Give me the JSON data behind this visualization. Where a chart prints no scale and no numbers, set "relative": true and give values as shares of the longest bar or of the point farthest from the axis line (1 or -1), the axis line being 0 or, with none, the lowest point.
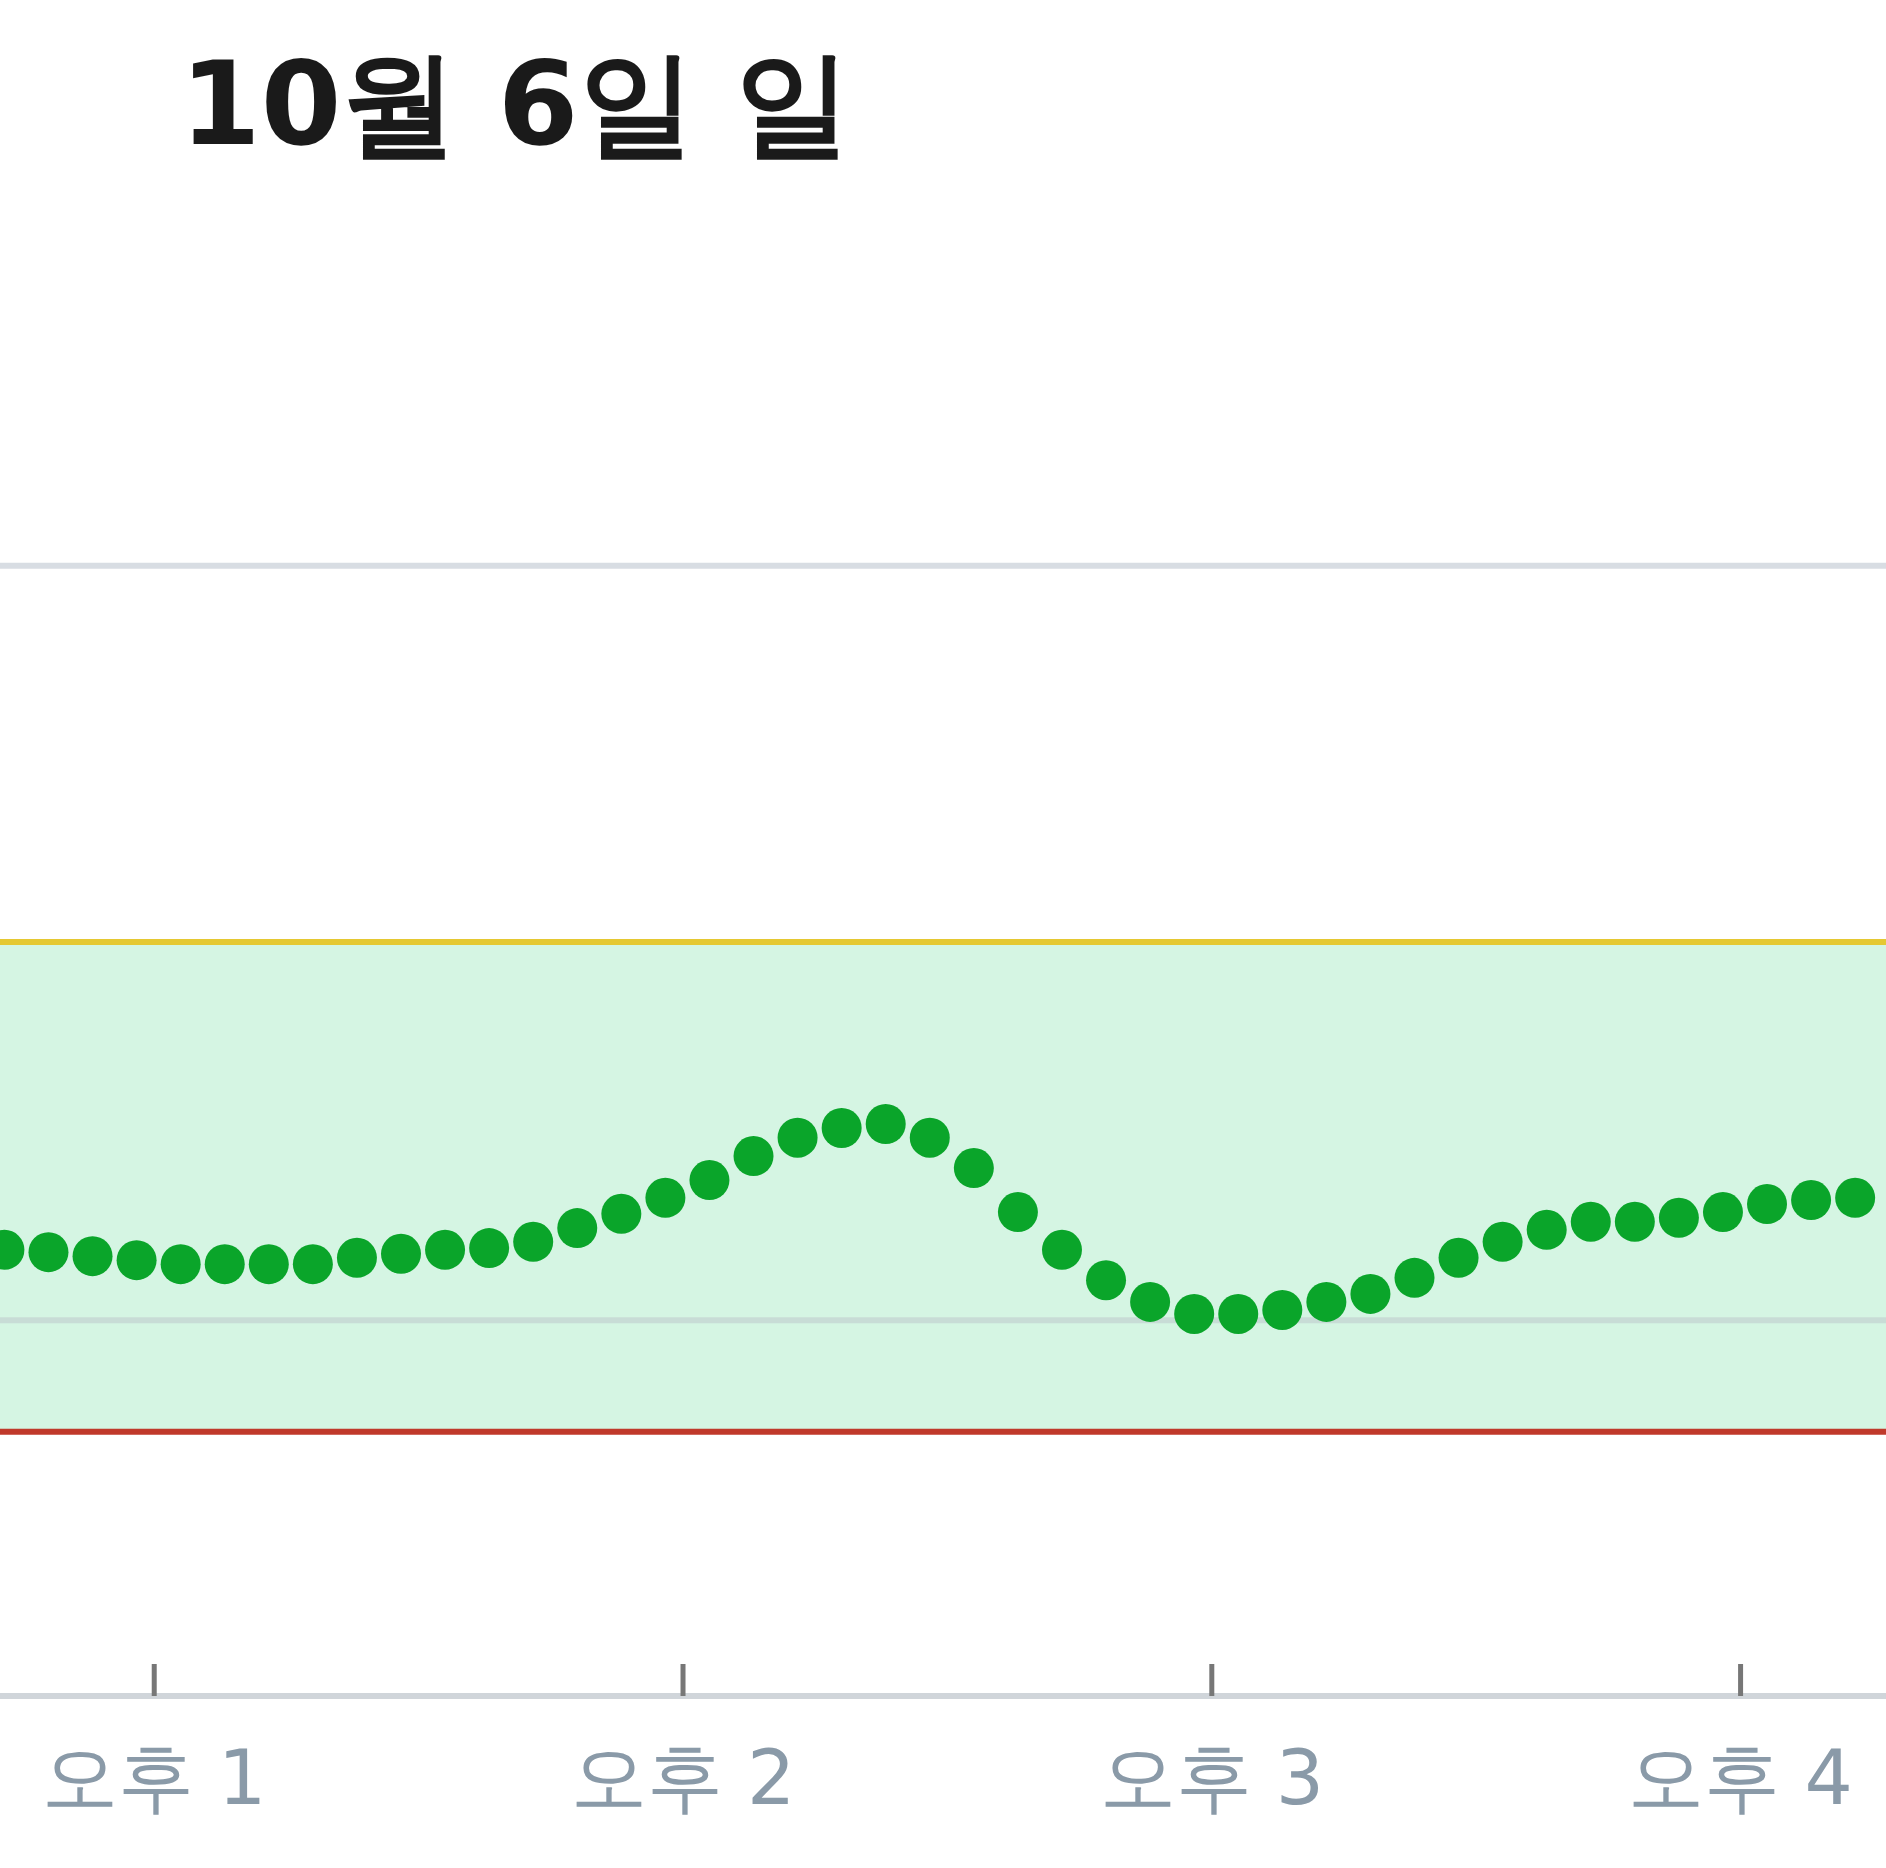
{
  "chart_data": {
    "type": "scatter",
    "title": "10월 6일 일",
    "relative": true,
    "marker": "circle",
    "categories": [
      null,
      null,
      null,
      null,
      null,
      null,
      null,
      null,
      null,
      null,
      null,
      null,
      null,
      null,
      null,
      null,
      null,
      "오후 1",
      null,
      null,
      null,
      null,
      null,
      null,
      null,
      null,
      null,
      null,
      null,
      null,
      null,
      null,
      null,
      null,
      null,
      null,
      null,
      null,
      null,
      null,
      null,
      null,
      null,
      null,
      null,
      null,
      null,
      null,
      null,
      null,
      null,
      null,
      null,
      null,
      null,
      null,
      null,
      null,
      null,
      null,
      null,
      null,
      null,
      null,
      null,
      null,
      null,
      null,
      null,
      null,
      null,
      null,
      null,
      null,
      null,
      null,
      null,
      "오후 2",
      null,
      null,
      null,
      null,
      null,
      null,
      null,
      null,
      null,
      null,
      null,
      null,
      null,
      null,
      null,
      null,
      null,
      null,
      null,
      null,
      null,
      null,
      null,
      null,
      null,
      null,
      null,
      null,
      null,
      null,
      null,
      null,
      null,
      null,
      null,
      null,
      null,
      null,
      null,
      null,
      null,
      null,
      null,
      null,
      null,
      null,
      null,
      null,
      null,
      null,
      null,
      null,
      null,
      null,
      null,
      null,
      null,
      null,
      null,
      "오후 3",
      null,
      null,
      null,
      null,
      null,
      null,
      null,
      null,
      null,
      null,
      null,
      null,
      null,
      null,
      null,
      null,
      null,
      null,
      null,
      null,
      null,
      null,
      null,
      null,
      null,
      null,
      null,
      null,
      null,
      null,
      null,
      null,
      null,
      null,
      null,
      null,
      null,
      null,
      null,
      null,
      null,
      null,
      null,
      null,
      null,
      null,
      null,
      null,
      null,
      null,
      null,
      null,
      null,
      null,
      null,
      null,
      null,
      null,
      null,
      "오후 4",
      null,
      null,
      null,
      null,
      null,
      null,
      null,
      null,
      null,
      null,
      null,
      null,
      null,
      null,
      null,
      null
    ],
    "series": [
      {
        "color": "#0aa52a",
        "values": [
          0.78,
          null,
          null,
          null,
          null,
          0.776,
          null,
          null,
          null,
          null,
          0.769,
          null,
          null,
          null,
          null,
          0.762,
          null,
          null,
          null,
          null,
          0.755,
          null,
          null,
          null,
          null,
          0.755,
          null,
          null,
          null,
          null,
          0.755,
          null,
          null,
          null,
          null,
          0.755,
          null,
          null,
          null,
          null,
          0.766,
          null,
          null,
          null,
          null,
          0.773,
          null,
          null,
          null,
          null,
          0.78,
          null,
          null,
          null,
          null,
          0.783,
          null,
          null,
          null,
          null,
          0.794,
          null,
          null,
          null,
          null,
          0.818,
          null,
          null,
          null,
          null,
          0.843,
          null,
          null,
          null,
          null,
          0.871,
          null,
          null,
          null,
          null,
          0.902,
          null,
          null,
          null,
          null,
          0.944,
          null,
          null,
          null,
          null,
          0.976,
          null,
          null,
          null,
          null,
          0.993,
          null,
          null,
          null,
          null,
          1,
          null,
          null,
          null,
          null,
          0.976,
          null,
          null,
          null,
          null,
          0.923,
          null,
          null,
          null,
          null,
          0.846,
          null,
          null,
          null,
          null,
          0.78,
          null,
          null,
          null,
          null,
          0.727,
          null,
          null,
          null,
          null,
          0.689,
          null,
          null,
          null,
          null,
          0.668,
          null,
          null,
          null,
          null,
          0.668,
          null,
          null,
          null,
          null,
          0.675,
          null,
          null,
          null,
          null,
          0.689,
          null,
          null,
          null,
          null,
          0.703,
          null,
          null,
          null,
          null,
          0.731,
          null,
          null,
          null,
          null,
          0.766,
          null,
          null,
          null,
          null,
          0.794,
          null,
          null,
          null,
          null,
          0.815,
          null,
          null,
          null,
          null,
          0.829,
          null,
          null,
          null,
          null,
          0.829,
          null,
          null,
          null,
          null,
          0.836,
          null,
          null,
          null,
          null,
          0.846,
          null,
          null,
          null,
          null,
          0.86,
          null,
          null,
          null,
          null,
          0.867,
          null,
          null,
          null,
          null,
          0.871,
          null,
          null,
          null
        ]
      }
    ],
    "bands": [
      {
        "axis": "y",
        "from": 0.462,
        "to": 1.318,
        "color": "#d5f5e3"
      }
    ],
    "ref_lines": [
      {
        "axis": "y",
        "value": 0.462,
        "color": "#c0392b"
      },
      {
        "axis": "y",
        "value": 1.318,
        "color": "#e5c832"
      },
      {
        "axis": "y",
        "value": 0.657,
        "color": "#c8dcd6"
      },
      {
        "axis": "y",
        "value": 1.976,
        "color": "#d8dde3"
      }
    ]
  }
}
